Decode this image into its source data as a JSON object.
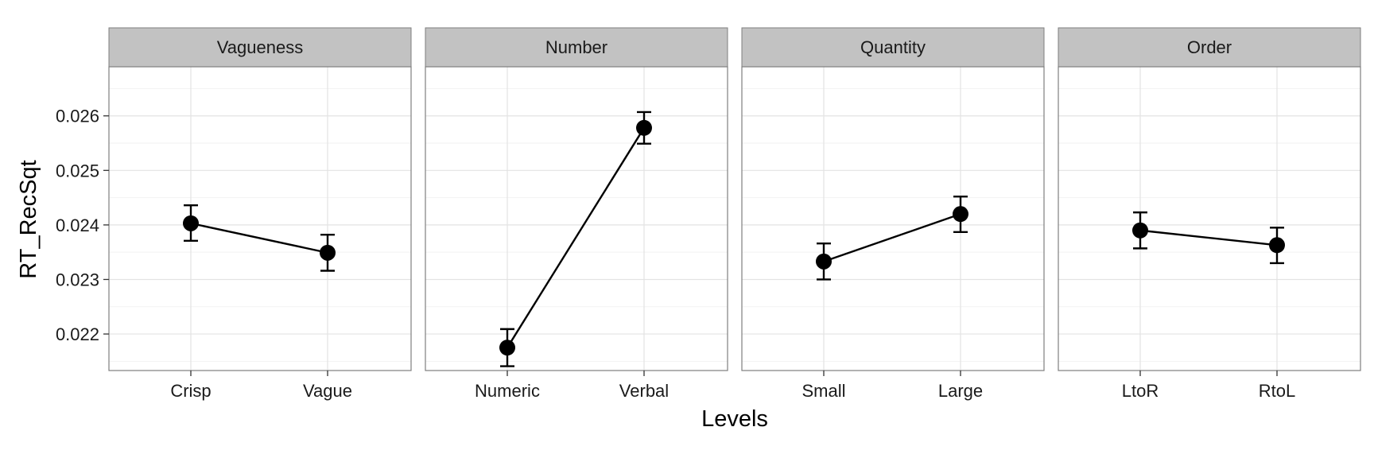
{
  "chart_data": {
    "type": "line",
    "ylabel": "RT_RecSqt",
    "xlabel": "Levels",
    "ylim": [
      0.02133,
      0.0269
    ],
    "y_ticks": [
      "0.022",
      "0.023",
      "0.024",
      "0.025",
      "0.026"
    ],
    "y_tick_values": [
      0.022,
      0.023,
      0.024,
      0.025,
      0.026
    ],
    "grid": true,
    "error_bars": true,
    "panels": [
      {
        "strip": "Vagueness",
        "categories": [
          "Crisp",
          "Vague"
        ],
        "values": [
          0.02403,
          0.02349
        ],
        "lower": [
          0.02371,
          0.02316
        ],
        "upper": [
          0.02436,
          0.02382
        ]
      },
      {
        "strip": "Number",
        "categories": [
          "Numeric",
          "Verbal"
        ],
        "values": [
          0.02175,
          0.02578
        ],
        "lower": [
          0.02141,
          0.02549
        ],
        "upper": [
          0.02209,
          0.02607
        ]
      },
      {
        "strip": "Quantity",
        "categories": [
          "Small",
          "Large"
        ],
        "values": [
          0.02333,
          0.0242
        ],
        "lower": [
          0.023,
          0.02387
        ],
        "upper": [
          0.02366,
          0.02452
        ]
      },
      {
        "strip": "Order",
        "categories": [
          "LtoR",
          "RtoL"
        ],
        "values": [
          0.0239,
          0.02363
        ],
        "lower": [
          0.02357,
          0.0233
        ],
        "upper": [
          0.02423,
          0.02395
        ]
      }
    ]
  }
}
